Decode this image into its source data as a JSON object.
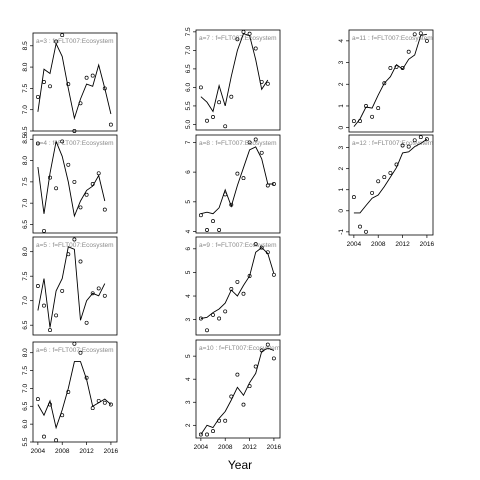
{
  "chart_data": {
    "type": "panel-grid",
    "xlabel": "Year",
    "panels": [
      {
        "strip": "a=3  :  f=FLT007:Ecosystem",
        "xlim": [
          2003.2,
          2017.0
        ],
        "ylim": [
          6.5,
          8.8
        ],
        "xticks": [],
        "yticks": [
          6.5,
          7.0,
          7.5,
          8.0,
          8.5
        ],
        "line": [
          [
            2004,
            6.95
          ],
          [
            2005,
            7.95
          ],
          [
            2006,
            7.85
          ],
          [
            2007,
            8.55
          ],
          [
            2008,
            8.25
          ],
          [
            2009,
            7.5
          ],
          [
            2010,
            6.8
          ],
          [
            2011,
            7.25
          ],
          [
            2012,
            7.6
          ],
          [
            2013,
            7.55
          ],
          [
            2014,
            8.05
          ],
          [
            2015,
            7.5
          ],
          [
            2016,
            6.9
          ]
        ],
        "points": [
          [
            2004,
            7.3
          ],
          [
            2005,
            7.65
          ],
          [
            2006,
            7.55
          ],
          [
            2007,
            8.6
          ],
          [
            2008,
            8.75
          ],
          [
            2009,
            7.6
          ],
          [
            2010,
            6.5
          ],
          [
            2011,
            7.15
          ],
          [
            2012,
            7.75
          ],
          [
            2013,
            7.8
          ],
          [
            2015,
            7.5
          ],
          [
            2016,
            6.65
          ]
        ]
      },
      {
        "strip": "a=4  :  f=FLT007:Ecosystem",
        "xlim": [
          2003.2,
          2017.0
        ],
        "ylim": [
          6.3,
          8.6
        ],
        "xticks": [],
        "yticks": [
          6.5,
          7.0,
          7.5,
          8.0,
          8.5
        ],
        "line": [
          [
            2004,
            7.85
          ],
          [
            2005,
            6.75
          ],
          [
            2006,
            7.7
          ],
          [
            2007,
            8.45
          ],
          [
            2008,
            8.1
          ],
          [
            2009,
            7.5
          ],
          [
            2010,
            6.7
          ],
          [
            2011,
            7.05
          ],
          [
            2012,
            7.3
          ],
          [
            2013,
            7.4
          ],
          [
            2014,
            7.65
          ],
          [
            2015,
            7.05
          ]
        ],
        "points": [
          [
            2004,
            8.4
          ],
          [
            2005,
            6.35
          ],
          [
            2006,
            7.6
          ],
          [
            2007,
            7.35
          ],
          [
            2008,
            8.45
          ],
          [
            2009,
            7.9
          ],
          [
            2010,
            7.5
          ],
          [
            2011,
            6.9
          ],
          [
            2012,
            7.2
          ],
          [
            2013,
            7.45
          ],
          [
            2014,
            7.7
          ],
          [
            2015,
            6.85
          ]
        ]
      },
      {
        "strip": "a=5  :  f=FLT007:Ecosystem",
        "xlim": [
          2003.2,
          2017.0
        ],
        "ylim": [
          6.3,
          8.3
        ],
        "xticks": [],
        "yticks": [
          6.5,
          7.0,
          7.5,
          8.0
        ],
        "line": [
          [
            2004,
            6.8
          ],
          [
            2005,
            7.45
          ],
          [
            2006,
            6.45
          ],
          [
            2007,
            7.2
          ],
          [
            2008,
            7.45
          ],
          [
            2009,
            8.1
          ],
          [
            2010,
            8.05
          ],
          [
            2011,
            6.6
          ],
          [
            2012,
            7.0
          ],
          [
            2013,
            7.15
          ],
          [
            2014,
            7.1
          ],
          [
            2015,
            7.35
          ]
        ],
        "points": [
          [
            2004,
            7.3
          ],
          [
            2005,
            6.9
          ],
          [
            2006,
            6.4
          ],
          [
            2007,
            6.7
          ],
          [
            2008,
            7.2
          ],
          [
            2009,
            7.95
          ],
          [
            2010,
            8.25
          ],
          [
            2011,
            7.8
          ],
          [
            2012,
            6.55
          ],
          [
            2013,
            7.15
          ],
          [
            2014,
            7.25
          ],
          [
            2015,
            7.1
          ]
        ]
      },
      {
        "strip": "a=6  :  f=FLT007:Ecosystem",
        "xlim": [
          2003.2,
          2017.0
        ],
        "ylim": [
          5.5,
          8.3
        ],
        "xticks": [
          2004,
          2008,
          2012,
          2016
        ],
        "yticks": [
          5.5,
          6.0,
          6.5,
          7.0,
          7.5,
          8.0
        ],
        "line": [
          [
            2004,
            6.55
          ],
          [
            2005,
            6.25
          ],
          [
            2006,
            6.65
          ],
          [
            2007,
            5.9
          ],
          [
            2008,
            6.4
          ],
          [
            2009,
            7.0
          ],
          [
            2010,
            7.75
          ],
          [
            2011,
            7.75
          ],
          [
            2012,
            7.25
          ],
          [
            2013,
            6.5
          ],
          [
            2014,
            6.6
          ],
          [
            2015,
            6.7
          ],
          [
            2016,
            6.55
          ]
        ],
        "points": [
          [
            2004,
            6.7
          ],
          [
            2005,
            5.65
          ],
          [
            2006,
            6.55
          ],
          [
            2007,
            5.55
          ],
          [
            2008,
            6.25
          ],
          [
            2009,
            6.9
          ],
          [
            2010,
            8.25
          ],
          [
            2011,
            8.0
          ],
          [
            2012,
            7.3
          ],
          [
            2013,
            6.45
          ],
          [
            2014,
            6.65
          ],
          [
            2015,
            6.6
          ],
          [
            2016,
            6.55
          ]
        ]
      },
      {
        "strip": "a=7  :  f=FLT007:Ecosystem",
        "xlim": [
          2003.2,
          2017.0
        ],
        "ylim": [
          4.85,
          7.55
        ],
        "xticks": [],
        "yticks": [
          5.0,
          5.5,
          6.0,
          6.5,
          7.0,
          7.5
        ],
        "line": [
          [
            2004,
            5.75
          ],
          [
            2005,
            5.6
          ],
          [
            2006,
            5.35
          ],
          [
            2007,
            6.05
          ],
          [
            2008,
            5.5
          ],
          [
            2009,
            6.3
          ],
          [
            2010,
            7.0
          ],
          [
            2011,
            7.45
          ],
          [
            2012,
            7.4
          ],
          [
            2013,
            6.75
          ],
          [
            2014,
            5.95
          ],
          [
            2015,
            6.2
          ]
        ],
        "points": [
          [
            2004,
            6.0
          ],
          [
            2005,
            5.1
          ],
          [
            2006,
            5.2
          ],
          [
            2007,
            5.6
          ],
          [
            2008,
            4.95
          ],
          [
            2009,
            5.75
          ],
          [
            2010,
            7.3
          ],
          [
            2011,
            7.5
          ],
          [
            2012,
            7.45
          ],
          [
            2013,
            7.05
          ],
          [
            2014,
            6.15
          ],
          [
            2015,
            6.1
          ]
        ]
      },
      {
        "strip": "a=8  :  f=FLT007:Ecosystem",
        "xlim": [
          2003.2,
          2017.0
        ],
        "ylim": [
          3.95,
          7.25
        ],
        "xticks": [],
        "yticks": [
          4.0,
          5.0,
          6.0,
          7.0
        ],
        "line": [
          [
            2004,
            4.6
          ],
          [
            2005,
            4.65
          ],
          [
            2006,
            4.6
          ],
          [
            2007,
            4.8
          ],
          [
            2008,
            5.4
          ],
          [
            2009,
            4.85
          ],
          [
            2010,
            5.55
          ],
          [
            2011,
            6.15
          ],
          [
            2012,
            6.75
          ],
          [
            2013,
            6.85
          ],
          [
            2014,
            6.45
          ],
          [
            2015,
            5.6
          ],
          [
            2016,
            5.6
          ]
        ],
        "points": [
          [
            2004,
            4.55
          ],
          [
            2005,
            4.05
          ],
          [
            2006,
            4.35
          ],
          [
            2007,
            4.05
          ],
          [
            2008,
            5.25
          ],
          [
            2009,
            4.9
          ],
          [
            2010,
            5.95
          ],
          [
            2011,
            5.8
          ],
          [
            2012,
            7.0
          ],
          [
            2013,
            7.1
          ],
          [
            2014,
            6.65
          ],
          [
            2015,
            5.55
          ],
          [
            2016,
            5.6
          ]
        ]
      },
      {
        "strip": "a=9  :  f=FLT007:Ecosystem",
        "xlim": [
          2003.2,
          2017.0
        ],
        "ylim": [
          2.35,
          6.5
        ],
        "xticks": [],
        "yticks": [
          3,
          4,
          5,
          6
        ],
        "line": [
          [
            2004,
            3.05
          ],
          [
            2005,
            3.1
          ],
          [
            2006,
            3.3
          ],
          [
            2007,
            3.45
          ],
          [
            2008,
            3.7
          ],
          [
            2009,
            4.25
          ],
          [
            2010,
            4.0
          ],
          [
            2011,
            4.45
          ],
          [
            2012,
            4.85
          ],
          [
            2013,
            5.85
          ],
          [
            2014,
            6.05
          ],
          [
            2015,
            5.8
          ],
          [
            2016,
            4.95
          ]
        ],
        "points": [
          [
            2004,
            3.05
          ],
          [
            2005,
            2.55
          ],
          [
            2006,
            3.2
          ],
          [
            2007,
            3.05
          ],
          [
            2008,
            3.35
          ],
          [
            2009,
            4.3
          ],
          [
            2010,
            4.6
          ],
          [
            2011,
            4.1
          ],
          [
            2012,
            4.85
          ],
          [
            2013,
            6.2
          ],
          [
            2014,
            6.05
          ],
          [
            2015,
            5.85
          ],
          [
            2016,
            4.9
          ]
        ]
      },
      {
        "strip": "a=10  :  f=FLT007:Ecosystem",
        "xlim": [
          2003.2,
          2017.0
        ],
        "ylim": [
          1.45,
          5.7
        ],
        "xticks": [
          2004,
          2008,
          2012,
          2016
        ],
        "yticks": [
          2,
          3,
          4,
          5
        ],
        "line": [
          [
            2004,
            1.6
          ],
          [
            2005,
            2.0
          ],
          [
            2006,
            1.9
          ],
          [
            2007,
            2.3
          ],
          [
            2008,
            2.6
          ],
          [
            2009,
            3.1
          ],
          [
            2010,
            3.65
          ],
          [
            2011,
            3.3
          ],
          [
            2012,
            3.85
          ],
          [
            2013,
            4.25
          ],
          [
            2014,
            5.2
          ],
          [
            2015,
            5.35
          ],
          [
            2016,
            5.25
          ]
        ],
        "points": [
          [
            2004,
            1.6
          ],
          [
            2005,
            1.6
          ],
          [
            2006,
            1.75
          ],
          [
            2007,
            2.2
          ],
          [
            2008,
            2.2
          ],
          [
            2009,
            3.25
          ],
          [
            2010,
            4.2
          ],
          [
            2011,
            2.9
          ],
          [
            2012,
            3.7
          ],
          [
            2013,
            4.55
          ],
          [
            2014,
            5.25
          ],
          [
            2015,
            5.5
          ],
          [
            2016,
            4.9
          ]
        ]
      },
      {
        "strip": "a=11  :  f=FLT007:Ecosystem",
        "xlim": [
          2003.2,
          2017.0
        ],
        "ylim": [
          -0.2,
          4.5
        ],
        "xticks": [],
        "yticks": [
          0,
          1,
          2,
          3,
          4
        ],
        "line": [
          [
            2004,
            0.05
          ],
          [
            2005,
            0.4
          ],
          [
            2006,
            0.95
          ],
          [
            2007,
            0.9
          ],
          [
            2008,
            1.5
          ],
          [
            2009,
            2.05
          ],
          [
            2010,
            2.35
          ],
          [
            2011,
            2.9
          ],
          [
            2012,
            2.7
          ],
          [
            2013,
            3.15
          ],
          [
            2014,
            3.35
          ],
          [
            2015,
            4.25
          ],
          [
            2016,
            4.3
          ]
        ],
        "points": [
          [
            2004,
            0.3
          ],
          [
            2005,
            0.3
          ],
          [
            2006,
            1.0
          ],
          [
            2007,
            0.5
          ],
          [
            2008,
            0.9
          ],
          [
            2009,
            2.05
          ],
          [
            2010,
            2.75
          ],
          [
            2011,
            2.8
          ],
          [
            2012,
            2.75
          ],
          [
            2013,
            3.5
          ],
          [
            2014,
            4.3
          ],
          [
            2015,
            4.35
          ],
          [
            2016,
            4.0
          ]
        ]
      },
      {
        "strip": "a=12  :  f=FLT007:Ecosystem",
        "xlim": [
          2003.2,
          2017.0
        ],
        "ylim": [
          -1.15,
          3.6
        ],
        "xticks": [
          2004,
          2008,
          2012,
          2016
        ],
        "yticks": [
          -1,
          0,
          1,
          2,
          3
        ],
        "line": [
          [
            2004,
            -0.1
          ],
          [
            2005,
            -0.1
          ],
          [
            2006,
            0.25
          ],
          [
            2007,
            0.6
          ],
          [
            2008,
            0.75
          ],
          [
            2009,
            1.15
          ],
          [
            2010,
            1.6
          ],
          [
            2011,
            2.05
          ],
          [
            2012,
            2.75
          ],
          [
            2013,
            2.8
          ],
          [
            2014,
            3.05
          ],
          [
            2015,
            3.2
          ],
          [
            2016,
            3.4
          ]
        ],
        "points": [
          [
            2004,
            0.65
          ],
          [
            2005,
            -0.75
          ],
          [
            2006,
            -1.0
          ],
          [
            2007,
            0.85
          ],
          [
            2008,
            1.4
          ],
          [
            2009,
            1.6
          ],
          [
            2010,
            1.8
          ],
          [
            2011,
            2.2
          ],
          [
            2012,
            3.1
          ],
          [
            2013,
            3.05
          ],
          [
            2014,
            3.35
          ],
          [
            2015,
            3.5
          ],
          [
            2016,
            3.4
          ]
        ]
      }
    ]
  }
}
